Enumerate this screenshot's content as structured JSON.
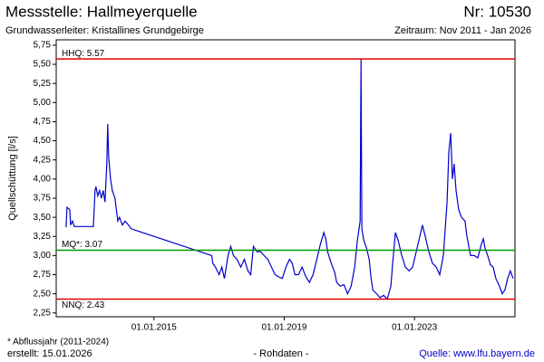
{
  "chart_data": {
    "type": "line",
    "title": "Messstelle: Hallmeyerquelle",
    "number": "Nr: 10530",
    "subtitle": "Grundwasserleiter: Kristallines Grundgebirge",
    "period": "Zeitraum: Nov 2011 - Jan 2026",
    "y_label": "Quellschüttung [l/s]",
    "footnote": "* Abflussjahr (2011-2024)",
    "created": "erstellt:  15.01.2026",
    "data_note": "- Rohdaten -",
    "source": "Quelle: www.lfu.bayern.de",
    "xlim": [
      "2012-01-01",
      "2026-02-01"
    ],
    "xticks": [
      {
        "value": "2015-01-01",
        "label": "01.01.2015"
      },
      {
        "value": "2019-01-01",
        "label": "01.01.2019"
      },
      {
        "value": "2023-01-01",
        "label": "01.01.2023"
      }
    ],
    "ylim": [
      2.2,
      5.82
    ],
    "yticks": [
      {
        "value": 2.25,
        "label": "2,25"
      },
      {
        "value": 2.5,
        "label": "2,50"
      },
      {
        "value": 2.75,
        "label": "2,75"
      },
      {
        "value": 3,
        "label": "3,00"
      },
      {
        "value": 3.25,
        "label": "3,25"
      },
      {
        "value": 3.5,
        "label": "3,50"
      },
      {
        "value": 3.75,
        "label": "3,75"
      },
      {
        "value": 4,
        "label": "4,00"
      },
      {
        "value": 4.25,
        "label": "4,25"
      },
      {
        "value": 4.5,
        "label": "4,50"
      },
      {
        "value": 4.75,
        "label": "4,75"
      },
      {
        "value": 5,
        "label": "5,00"
      },
      {
        "value": 5.25,
        "label": "5,25"
      },
      {
        "value": 5.5,
        "label": "5,50"
      },
      {
        "value": 5.75,
        "label": "5,75"
      }
    ],
    "reference_lines": [
      {
        "label": "HHQ: 5.57",
        "value": 5.57,
        "color": "#e00000"
      },
      {
        "label": "MQ*: 3.07",
        "value": 3.07,
        "color": "#009900"
      },
      {
        "label": "NNQ: 2.43",
        "value": 2.43,
        "color": "#e00000"
      }
    ],
    "series": [
      {
        "color": "#0000cc",
        "x": [
          "2012-04-21",
          "2012-05-01",
          "2012-06-01",
          "2012-06-11",
          "2012-07-01",
          "2012-07-21",
          "2012-11-01",
          "2013-02-21",
          "2013-03-11",
          "2013-03-21",
          "2013-04-11",
          "2013-05-01",
          "2013-05-21",
          "2013-06-11",
          "2013-07-01",
          "2013-07-21",
          "2013-08-01",
          "2013-08-11",
          "2013-09-01",
          "2013-09-21",
          "2013-10-21",
          "2013-11-11",
          "2013-11-21",
          "2013-12-11",
          "2014-01-11",
          "2014-02-11",
          "2014-03-21",
          "2014-04-21",
          "2016-10-11",
          "2016-10-21",
          "2016-11-21",
          "2016-12-11",
          "2017-01-01",
          "2017-02-01",
          "2017-03-01",
          "2017-04-11",
          "2017-05-11",
          "2017-06-11",
          "2017-07-21",
          "2017-09-01",
          "2017-10-11",
          "2017-11-21",
          "2017-12-21",
          "2018-01-21",
          "2018-03-01",
          "2018-04-11",
          "2018-05-21",
          "2018-07-01",
          "2018-08-11",
          "2018-09-21",
          "2018-11-01",
          "2018-12-11",
          "2019-01-21",
          "2019-03-01",
          "2019-04-01",
          "2019-05-01",
          "2019-06-11",
          "2019-07-21",
          "2019-09-01",
          "2019-10-11",
          "2019-11-21",
          "2020-01-01",
          "2020-02-11",
          "2020-03-21",
          "2020-04-11",
          "2020-05-01",
          "2020-06-11",
          "2020-07-21",
          "2020-08-11",
          "2020-09-21",
          "2020-11-01",
          "2020-12-11",
          "2021-01-21",
          "2021-03-01",
          "2021-04-01",
          "2021-05-01",
          "2021-05-11",
          "2021-05-21",
          "2021-06-11",
          "2021-07-11",
          "2021-08-11",
          "2021-09-01",
          "2021-09-21",
          "2021-11-01",
          "2021-12-11",
          "2022-01-21",
          "2022-03-01",
          "2022-04-11",
          "2022-05-01",
          "2022-06-01",
          "2022-07-01",
          "2022-08-11",
          "2022-09-21",
          "2022-11-01",
          "2022-12-11",
          "2023-01-21",
          "2023-03-01",
          "2023-04-01",
          "2023-05-01",
          "2023-06-11",
          "2023-07-21",
          "2023-09-01",
          "2023-10-11",
          "2023-11-21",
          "2024-01-01",
          "2024-01-21",
          "2024-02-11",
          "2024-03-01",
          "2024-03-21",
          "2024-04-11",
          "2024-05-11",
          "2024-06-11",
          "2024-07-21",
          "2024-08-11",
          "2024-09-21",
          "2024-11-01",
          "2024-12-11",
          "2025-01-21",
          "2025-02-11",
          "2025-03-01",
          "2025-04-01",
          "2025-05-01",
          "2025-06-01",
          "2025-07-01",
          "2025-08-11",
          "2025-09-11",
          "2025-10-11",
          "2025-11-11",
          "2025-12-11",
          "2026-01-11"
        ],
        "values": [
          3.37,
          3.63,
          3.6,
          3.4,
          3.45,
          3.38,
          3.38,
          3.38,
          3.85,
          3.9,
          3.78,
          3.85,
          3.75,
          3.85,
          3.7,
          4.2,
          4.72,
          4.3,
          4.0,
          3.85,
          3.75,
          3.55,
          3.45,
          3.5,
          3.4,
          3.45,
          3.4,
          3.35,
          3.0,
          2.9,
          2.85,
          2.8,
          2.75,
          2.85,
          2.7,
          3.0,
          3.12,
          3.0,
          2.95,
          2.85,
          2.95,
          2.8,
          2.75,
          3.12,
          3.05,
          3.05,
          3.0,
          2.95,
          2.85,
          2.75,
          2.72,
          2.7,
          2.85,
          2.95,
          2.9,
          2.75,
          2.75,
          2.85,
          2.72,
          2.65,
          2.75,
          2.95,
          3.15,
          3.3,
          3.22,
          3.05,
          2.9,
          2.78,
          2.65,
          2.6,
          2.62,
          2.5,
          2.6,
          2.85,
          3.2,
          3.45,
          5.57,
          3.35,
          3.2,
          3.1,
          2.95,
          2.7,
          2.55,
          2.5,
          2.45,
          2.48,
          2.43,
          2.6,
          2.9,
          3.3,
          3.2,
          3.0,
          2.85,
          2.8,
          2.85,
          3.05,
          3.25,
          3.4,
          3.25,
          3.05,
          2.9,
          2.85,
          2.75,
          3.0,
          3.7,
          4.35,
          4.6,
          4.0,
          4.2,
          3.85,
          3.6,
          3.5,
          3.45,
          3.25,
          3.0,
          3.0,
          2.97,
          3.15,
          3.22,
          3.1,
          3.0,
          2.88,
          2.85,
          2.7,
          2.6,
          2.5,
          2.55,
          2.7,
          2.8,
          2.7
        ]
      }
    ]
  }
}
